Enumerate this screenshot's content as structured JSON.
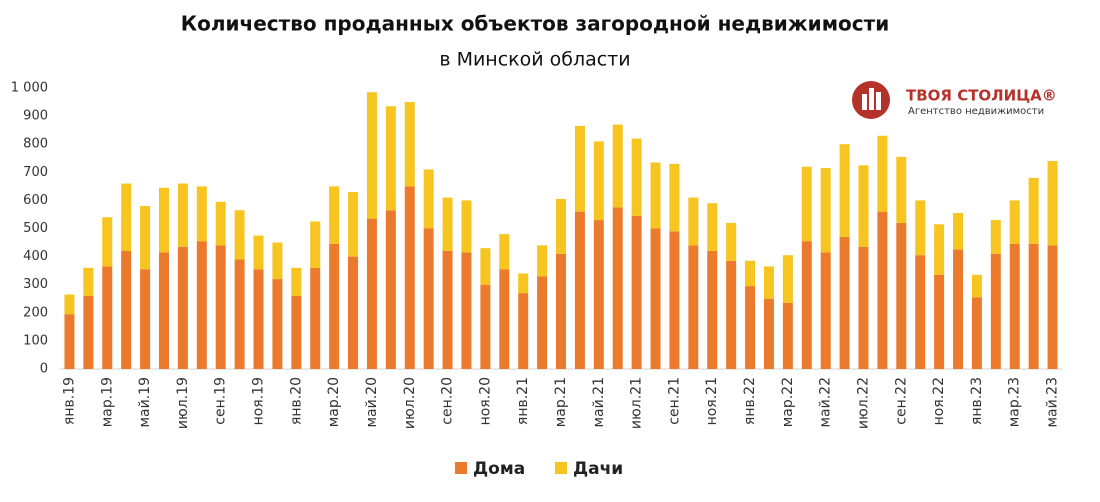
{
  "chart_data": {
    "type": "bar",
    "stacked": true,
    "title": "Количество проданных объектов загородной недвижимости",
    "subtitle": "в Минской области",
    "logo": {
      "name": "ТВОЯ СТОЛИЦА®",
      "tagline": "Агентство недвижимости"
    },
    "categories": [
      "янв.19",
      null,
      "мар.19",
      null,
      "май.19",
      null,
      "июл.19",
      null,
      "сен.19",
      null,
      "ноя.19",
      null,
      "янв.20",
      null,
      "мар.20",
      null,
      "май.20",
      null,
      "июл.20",
      null,
      "сен.20",
      null,
      "ноя.20",
      null,
      "янв.21",
      null,
      "мар.21",
      null,
      "май.21",
      null,
      "июл.21",
      null,
      "сен.21",
      null,
      "ноя.21",
      null,
      "янв.22",
      null,
      "мар.22",
      null,
      "май.22",
      null,
      "июл.22",
      null,
      "сен.22",
      null,
      "ноя.22",
      null,
      "янв.23",
      null,
      "мар.23",
      null,
      "май.23"
    ],
    "series": [
      {
        "name": "Дома",
        "color": "#ec7a2c",
        "values": [
          195,
          260,
          365,
          420,
          355,
          415,
          435,
          455,
          440,
          390,
          355,
          320,
          260,
          360,
          445,
          400,
          535,
          565,
          650,
          500,
          420,
          415,
          300,
          355,
          270,
          330,
          410,
          560,
          530,
          575,
          545,
          500,
          490,
          440,
          420,
          385,
          295,
          250,
          235,
          455,
          415,
          470,
          435,
          560,
          520,
          405,
          335,
          425,
          255,
          410,
          445,
          445,
          440
        ]
      },
      {
        "name": "Дачи",
        "color": "#f6c520",
        "values": [
          70,
          100,
          175,
          240,
          225,
          230,
          225,
          195,
          155,
          175,
          120,
          130,
          100,
          165,
          205,
          230,
          450,
          370,
          300,
          210,
          190,
          185,
          130,
          125,
          70,
          110,
          195,
          305,
          280,
          295,
          275,
          235,
          240,
          170,
          170,
          135,
          90,
          115,
          170,
          265,
          300,
          330,
          290,
          270,
          235,
          195,
          180,
          130,
          80,
          120,
          155,
          235,
          300
        ]
      }
    ],
    "ylim": [
      0,
      1000
    ],
    "yticks": [
      0,
      100,
      200,
      300,
      400,
      500,
      600,
      700,
      800,
      900,
      {
        "value": 1000,
        "label": "1 000"
      }
    ],
    "grid": false,
    "legend": "bottom"
  }
}
